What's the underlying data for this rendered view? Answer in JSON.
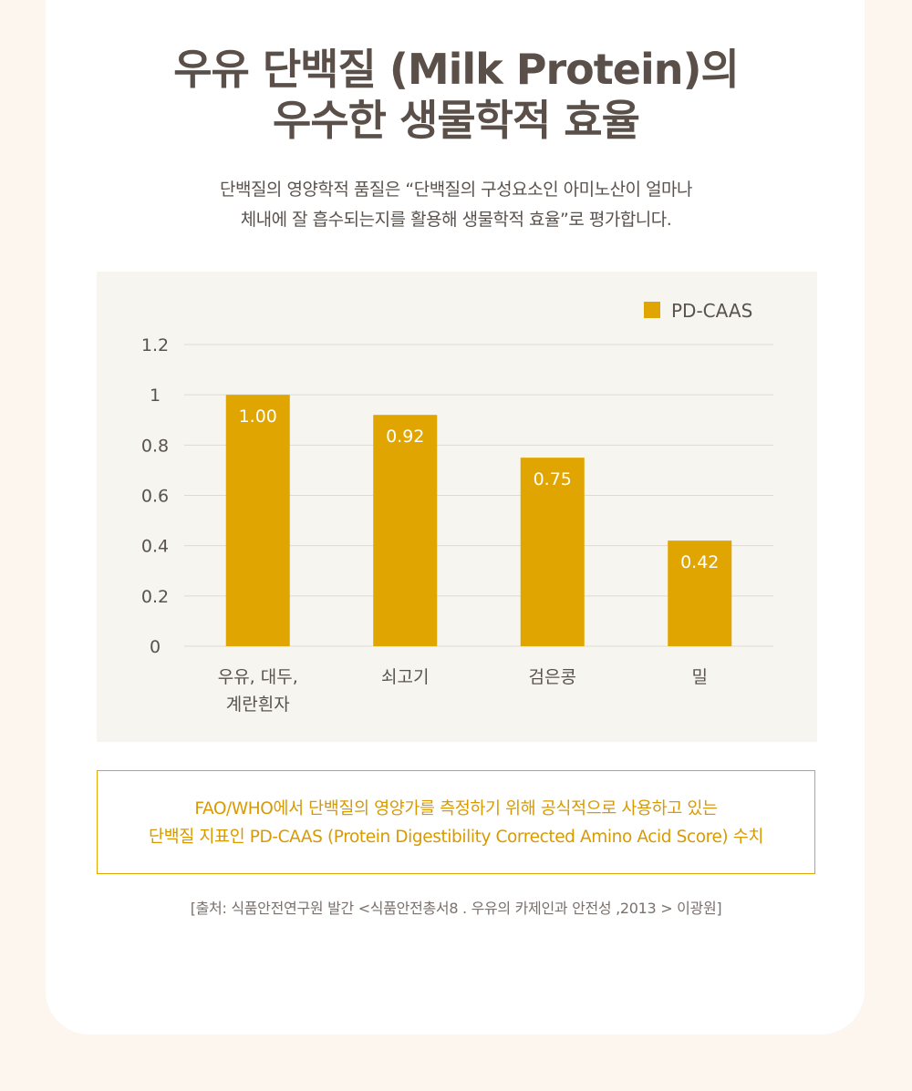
{
  "title": {
    "line1": "우유 단백질 (Milk Protein)의",
    "line2": "우수한 생물학적 효율"
  },
  "subtitle": {
    "line1": "단백질의 영양학적 품질은 “단백질의 구성요소인 아미노산이 얼마나",
    "line2": "체내에 잘 흡수되는지를 활용해 생물학적 효율”로 평가합니다."
  },
  "chart_data": {
    "type": "bar",
    "categories": [
      [
        "우유, 대두,",
        "계란흰자"
      ],
      [
        "쇠고기"
      ],
      [
        "검은콩"
      ],
      [
        "밀"
      ]
    ],
    "series": [
      {
        "name": "PD-CAAS",
        "values": [
          1.0,
          0.92,
          0.75,
          0.42
        ],
        "labels": [
          "1.00",
          "0.92",
          "0.75",
          "0.42"
        ],
        "color": "#e0a500"
      }
    ],
    "yticks": [
      "0",
      "0.2",
      "0.4",
      "0.6",
      "0.8",
      "1",
      "1.2"
    ],
    "ylim": [
      0,
      1.2
    ],
    "grid": true,
    "legend_position": "top-right"
  },
  "note": {
    "line1": "FAO/WHO에서 단백질의 영양가를 측정하기 위해 공식적으로 사용하고 있는",
    "line2": "단백질 지표인 PD-CAAS (Protein Digestibility Corrected Amino Acid Score) 수치"
  },
  "source": "[출처: 식품안전연구원 발간 <식품안전총서8 . 우유의 카제인과 안전성 ,2013 > 이광원]",
  "colors": {
    "accent": "#e0a500",
    "title": "#5b4f49",
    "chart_bg": "#f6f5f0",
    "page_bg": "#fdf6ee"
  }
}
